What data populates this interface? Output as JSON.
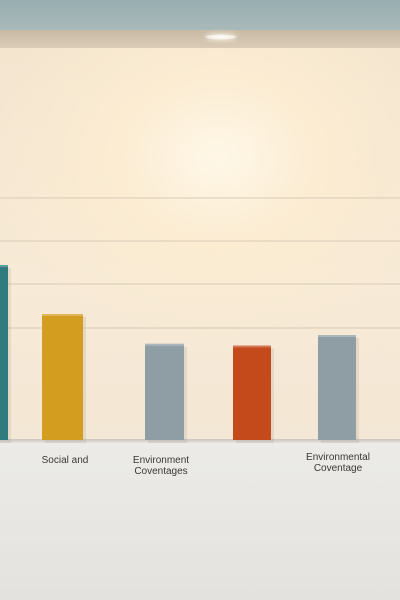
{
  "chart_data": {
    "type": "bar",
    "title": "",
    "xlabel": "",
    "ylabel": "",
    "ylim": [
      0,
      100
    ],
    "grid": true,
    "categories": [
      "",
      "Social and",
      "Environment Coventages",
      "",
      "Environmental Coventage"
    ],
    "values": [
      100,
      72,
      55,
      54,
      60
    ],
    "colors": [
      "#2f7b7d",
      "#d39d1f",
      "#8f9ea4",
      "#c4491b",
      "#8f9ea4"
    ],
    "gridlines": [
      25,
      50,
      75,
      100
    ]
  }
}
